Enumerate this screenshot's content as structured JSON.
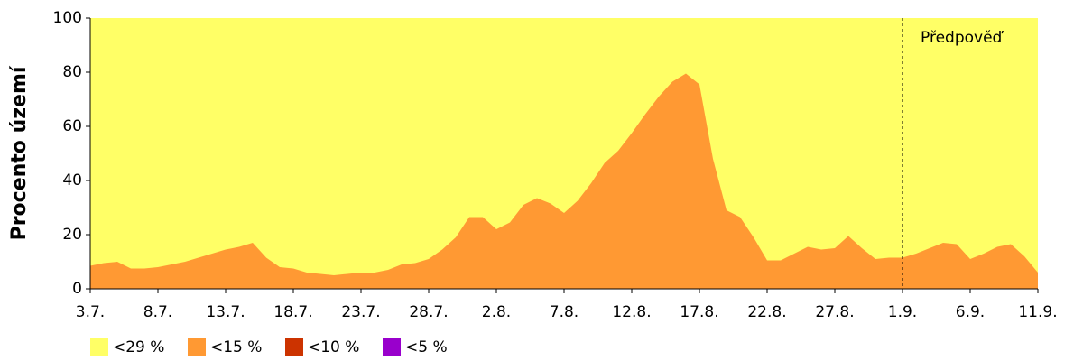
{
  "chart_data": {
    "type": "area",
    "ylabel": "Procento území",
    "categories": [
      "3.7.",
      null,
      null,
      null,
      null,
      "8.7.",
      null,
      null,
      null,
      null,
      "13.7.",
      null,
      null,
      null,
      null,
      "18.7.",
      null,
      null,
      null,
      null,
      "23.7.",
      null,
      null,
      null,
      null,
      "28.7.",
      null,
      null,
      null,
      null,
      "2.8.",
      null,
      null,
      null,
      null,
      "7.8.",
      null,
      null,
      null,
      null,
      "12.8.",
      null,
      null,
      null,
      null,
      "17.8.",
      null,
      null,
      null,
      null,
      "22.8.",
      null,
      null,
      null,
      null,
      "27.8.",
      null,
      null,
      null,
      null,
      "1.9.",
      null,
      null,
      null,
      null,
      "6.9.",
      null,
      null,
      null,
      null,
      "11.9."
    ],
    "series": [
      {
        "name": "<29 %",
        "color": "#ffff66",
        "values": [
          100,
          100,
          100,
          100,
          100,
          100,
          100,
          100,
          100,
          100,
          100,
          100,
          100,
          100,
          100,
          100,
          100,
          100,
          100,
          100,
          100,
          100,
          100,
          100,
          100,
          100,
          100,
          100,
          100,
          100,
          100,
          100,
          100,
          100,
          100,
          100,
          100,
          100,
          100,
          100,
          100,
          100,
          100,
          100,
          100,
          100,
          100,
          100,
          100,
          100,
          100,
          100,
          100,
          100,
          100,
          100,
          100,
          100,
          100,
          100,
          100,
          100,
          100,
          100,
          100,
          100,
          100,
          100,
          100,
          100,
          100
        ]
      },
      {
        "name": "<15 %",
        "color": "#ff9933",
        "values": [
          8.5,
          9.5,
          10,
          7.5,
          7.5,
          8,
          9,
          10,
          11.5,
          13,
          14.5,
          15.5,
          17,
          11.5,
          8,
          7.5,
          6,
          5.5,
          5,
          5.5,
          6,
          6,
          7,
          9,
          9.5,
          11,
          14.5,
          19,
          26.5,
          26.5,
          22,
          24.5,
          31,
          33.5,
          31.5,
          28,
          32.5,
          39,
          46.5,
          51,
          57.5,
          64.5,
          71,
          76.5,
          79.5,
          75.5,
          48,
          29,
          26.5,
          19,
          10.5,
          10.5,
          13,
          15.5,
          14.5,
          15,
          19.5,
          15,
          11,
          11.5,
          11.5,
          13,
          15,
          17,
          16.5,
          11,
          13,
          15.5,
          16.5,
          12,
          6
        ]
      },
      {
        "name": "<10 %",
        "color": "#cc3300",
        "values": [
          0,
          0,
          0,
          0,
          0,
          0,
          0,
          0,
          0,
          0,
          0,
          0,
          0,
          0,
          0,
          0,
          0,
          0,
          0,
          0,
          0,
          0,
          0,
          0,
          0,
          0,
          0,
          0,
          0,
          0,
          0,
          0,
          0,
          0,
          0,
          0,
          0,
          0,
          0,
          0,
          0,
          0,
          0,
          0,
          0,
          0,
          0,
          0,
          0,
          0,
          0,
          0,
          0,
          0,
          0,
          0,
          0,
          0,
          0,
          0,
          0,
          0,
          0,
          0,
          0,
          0,
          0,
          0,
          0,
          0,
          0
        ]
      },
      {
        "name": "<5 %",
        "color": "#9900cc",
        "values": [
          0,
          0,
          0,
          0,
          0,
          0,
          0,
          0,
          0,
          0,
          0,
          0,
          0,
          0,
          0,
          0,
          0,
          0,
          0,
          0,
          0,
          0,
          0,
          0,
          0,
          0,
          0,
          0,
          0,
          0,
          0,
          0,
          0,
          0,
          0,
          0,
          0,
          0,
          0,
          0,
          0,
          0,
          0,
          0,
          0,
          0,
          0,
          0,
          0,
          0,
          0,
          0,
          0,
          0,
          0,
          0,
          0,
          0,
          0,
          0,
          0,
          0,
          0,
          0,
          0,
          0,
          0,
          0,
          0,
          0,
          0
        ]
      }
    ],
    "ylim": [
      0,
      100
    ],
    "yticks": [
      0,
      20,
      40,
      60,
      80,
      100
    ],
    "annotation": {
      "label": "Předpověď",
      "at": "1.9."
    },
    "legend": "bottom-left"
  }
}
